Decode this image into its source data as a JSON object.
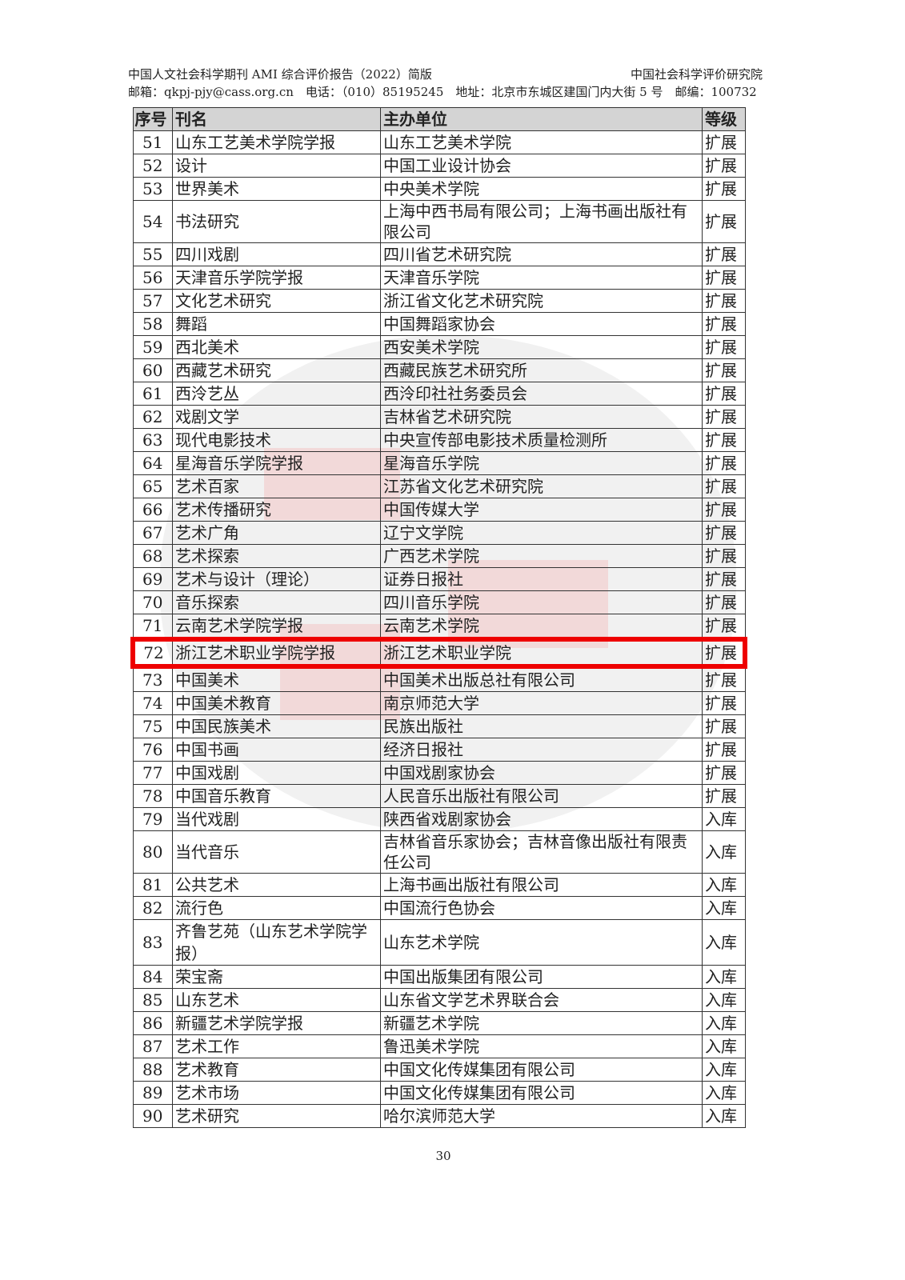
{
  "header": {
    "report_title": "中国人文社会科学期刊 AMI 综合评价报告（2022）简版",
    "institute": "中国社会科学评价研究院",
    "contact": "邮箱：qkpj-pjy@cass.org.cn　电话：（010）85195245　地址：北京市东城区建国门内大街 5 号　邮编：100732"
  },
  "table": {
    "columns": [
      "序号",
      "刊名",
      "主办单位",
      "等级"
    ],
    "highlighted_row": "72",
    "highlight_color": "#e00000",
    "rows": [
      [
        "51",
        "山东工艺美术学院学报",
        "山东工艺美术学院",
        "扩展"
      ],
      [
        "52",
        "设计",
        "中国工业设计协会",
        "扩展"
      ],
      [
        "53",
        "世界美术",
        "中央美术学院",
        "扩展"
      ],
      [
        "54",
        "书法研究",
        "上海中西书局有限公司；上海书画出版社有限公司",
        "扩展"
      ],
      [
        "55",
        "四川戏剧",
        "四川省艺术研究院",
        "扩展"
      ],
      [
        "56",
        "天津音乐学院学报",
        "天津音乐学院",
        "扩展"
      ],
      [
        "57",
        "文化艺术研究",
        "浙江省文化艺术研究院",
        "扩展"
      ],
      [
        "58",
        "舞蹈",
        "中国舞蹈家协会",
        "扩展"
      ],
      [
        "59",
        "西北美术",
        "西安美术学院",
        "扩展"
      ],
      [
        "60",
        "西藏艺术研究",
        "西藏民族艺术研究所",
        "扩展"
      ],
      [
        "61",
        "西泠艺丛",
        "西泠印社社务委员会",
        "扩展"
      ],
      [
        "62",
        "戏剧文学",
        "吉林省艺术研究院",
        "扩展"
      ],
      [
        "63",
        "现代电影技术",
        "中央宣传部电影技术质量检测所",
        "扩展"
      ],
      [
        "64",
        "星海音乐学院学报",
        "星海音乐学院",
        "扩展"
      ],
      [
        "65",
        "艺术百家",
        "江苏省文化艺术研究院",
        "扩展"
      ],
      [
        "66",
        "艺术传播研究",
        "中国传媒大学",
        "扩展"
      ],
      [
        "67",
        "艺术广角",
        "辽宁文学院",
        "扩展"
      ],
      [
        "68",
        "艺术探索",
        "广西艺术学院",
        "扩展"
      ],
      [
        "69",
        "艺术与设计（理论）",
        "证券日报社",
        "扩展"
      ],
      [
        "70",
        "音乐探索",
        "四川音乐学院",
        "扩展"
      ],
      [
        "71",
        "云南艺术学院学报",
        "云南艺术学院",
        "扩展"
      ],
      [
        "72",
        "浙江艺术职业学院学报",
        "浙江艺术职业学院",
        "扩展"
      ],
      [
        "73",
        "中国美术",
        "中国美术出版总社有限公司",
        "扩展"
      ],
      [
        "74",
        "中国美术教育",
        "南京师范大学",
        "扩展"
      ],
      [
        "75",
        "中国民族美术",
        "民族出版社",
        "扩展"
      ],
      [
        "76",
        "中国书画",
        "经济日报社",
        "扩展"
      ],
      [
        "77",
        "中国戏剧",
        "中国戏剧家协会",
        "扩展"
      ],
      [
        "78",
        "中国音乐教育",
        "人民音乐出版社有限公司",
        "扩展"
      ],
      [
        "79",
        "当代戏剧",
        "陕西省戏剧家协会",
        "入库"
      ],
      [
        "80",
        "当代音乐",
        "吉林省音乐家协会；吉林音像出版社有限责任公司",
        "入库"
      ],
      [
        "81",
        "公共艺术",
        "上海书画出版社有限公司",
        "入库"
      ],
      [
        "82",
        "流行色",
        "中国流行色协会",
        "入库"
      ],
      [
        "83",
        "齐鲁艺苑（山东艺术学院学报）",
        "山东艺术学院",
        "入库"
      ],
      [
        "84",
        "荣宝斋",
        "中国出版集团有限公司",
        "入库"
      ],
      [
        "85",
        "山东艺术",
        "山东省文学艺术界联合会",
        "入库"
      ],
      [
        "86",
        "新疆艺术学院学报",
        "新疆艺术学院",
        "入库"
      ],
      [
        "87",
        "艺术工作",
        "鲁迅美术学院",
        "入库"
      ],
      [
        "88",
        "艺术教育",
        "中国文化传媒集团有限公司",
        "入库"
      ],
      [
        "89",
        "艺术市场",
        "中国文化传媒集团有限公司",
        "入库"
      ],
      [
        "90",
        "艺术研究",
        "哈尔滨师范大学",
        "入库"
      ]
    ]
  },
  "page_number": "30"
}
